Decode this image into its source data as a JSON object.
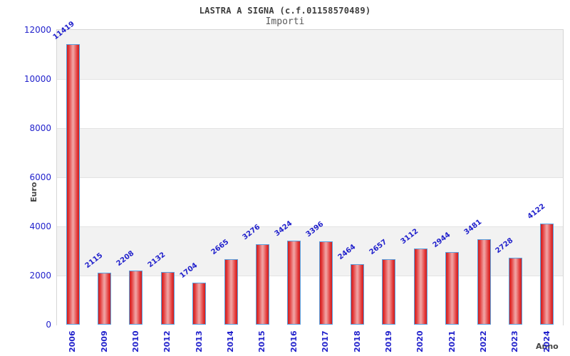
{
  "chart_data": {
    "type": "bar",
    "title": "LASTRA A SIGNA (c.f.01158570489)",
    "subtitle": "Importi",
    "xlabel": "Anno",
    "ylabel": "Euro",
    "categories": [
      "2006",
      "2009",
      "2010",
      "2012",
      "2013",
      "2014",
      "2015",
      "2016",
      "2017",
      "2018",
      "2019",
      "2020",
      "2021",
      "2022",
      "2023",
      "2024"
    ],
    "values": [
      11419,
      2115,
      2208,
      2132,
      1704,
      2665,
      3276,
      3424,
      3396,
      2464,
      2657,
      3112,
      2944,
      3481,
      2728,
      4122
    ],
    "ylim": [
      0,
      12000
    ],
    "ytick_step": 2000,
    "yticks": [
      0,
      2000,
      4000,
      6000,
      8000,
      10000,
      12000
    ],
    "grid": "alternating-horizontal-bands",
    "legend": "none",
    "bar_value_labels_rotated": true,
    "x_tick_labels_rotated": true,
    "colors": {
      "tick_label_blue": "#2222cc",
      "value_label_blue": "#2222cc",
      "bar_edge_red": "#cc1f1f",
      "bar_mid_red": "#e23535",
      "bar_center_pink": "#f0a0a0",
      "bar_border_blue": "#5aa2e0",
      "band_gray": "#f2f2f2",
      "band_white": "#ffffff",
      "grid_line": "#e3e3e3",
      "plot_border": "#d6d6d6",
      "title_color": "#3c3c3c",
      "subtitle_color": "#5a5a5a",
      "axis_title_color": "#444444"
    }
  }
}
